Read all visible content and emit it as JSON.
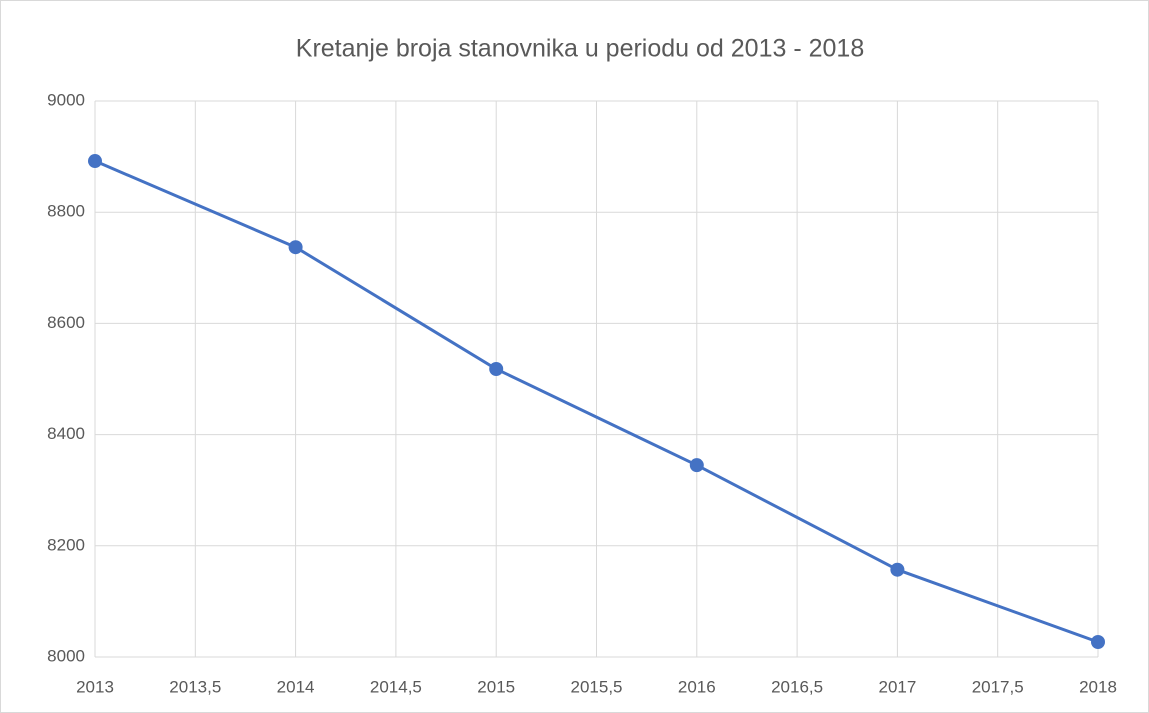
{
  "chart_data": {
    "type": "line",
    "title": "Kretanje broja stanovnika u periodu od 2013 - 2018",
    "x": [
      2013,
      2014,
      2015,
      2016,
      2017,
      2018
    ],
    "values": [
      8892,
      8737,
      8518,
      8345,
      8157,
      8027
    ],
    "color": "#4472c4",
    "xlim": [
      2013,
      2018
    ],
    "xticks": [
      2013,
      {
        "value": 2013.5,
        "label": "2013,5"
      },
      2014,
      {
        "value": 2014.5,
        "label": "2014,5"
      },
      2015,
      {
        "value": 2015.5,
        "label": "2015,5"
      },
      2016,
      {
        "value": 2016.5,
        "label": "2016,5"
      },
      2017,
      {
        "value": 2017.5,
        "label": "2017,5"
      },
      2018
    ],
    "ylim": [
      8000,
      9000
    ],
    "yticks": [
      8000,
      8200,
      8400,
      8600,
      8800,
      9000
    ],
    "grid": true
  }
}
